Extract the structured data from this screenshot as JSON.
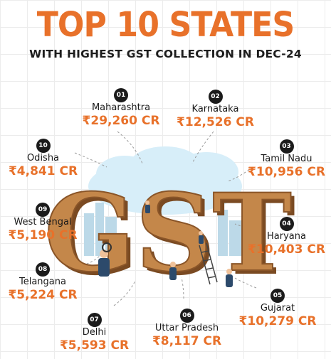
{
  "title": "TOP 10 STATES",
  "subtitle": "WITH HIGHEST GST COLLECTION IN DEC-24",
  "center_text": "GST",
  "states": [
    {
      "rank": "01",
      "name": "Maharashtra",
      "value": "₹29,260 CR"
    },
    {
      "rank": "02",
      "name": "Karnataka",
      "value": "₹12,526 CR"
    },
    {
      "rank": "03",
      "name": "Tamil Nadu",
      "value": "₹10,956 CR"
    },
    {
      "rank": "04",
      "name": "Haryana",
      "value": "₹10,403 CR"
    },
    {
      "rank": "05",
      "name": "Gujarat",
      "value": "₹10,279 CR"
    },
    {
      "rank": "06",
      "name": "Uttar Pradesh",
      "value": "₹8,117 CR"
    },
    {
      "rank": "07",
      "name": "Delhi",
      "value": "₹5,593 CR"
    },
    {
      "rank": "08",
      "name": "Telangana",
      "value": "₹5,224 CR"
    },
    {
      "rank": "09",
      "name": "West Bengal",
      "value": "₹5,190 CR"
    },
    {
      "rank": "10",
      "name": "Odisha",
      "value": "₹4,841 CR"
    }
  ],
  "colors": {
    "accent": "#e8712a",
    "badge": "#1b1b1b",
    "text": "#1a1a1a"
  }
}
